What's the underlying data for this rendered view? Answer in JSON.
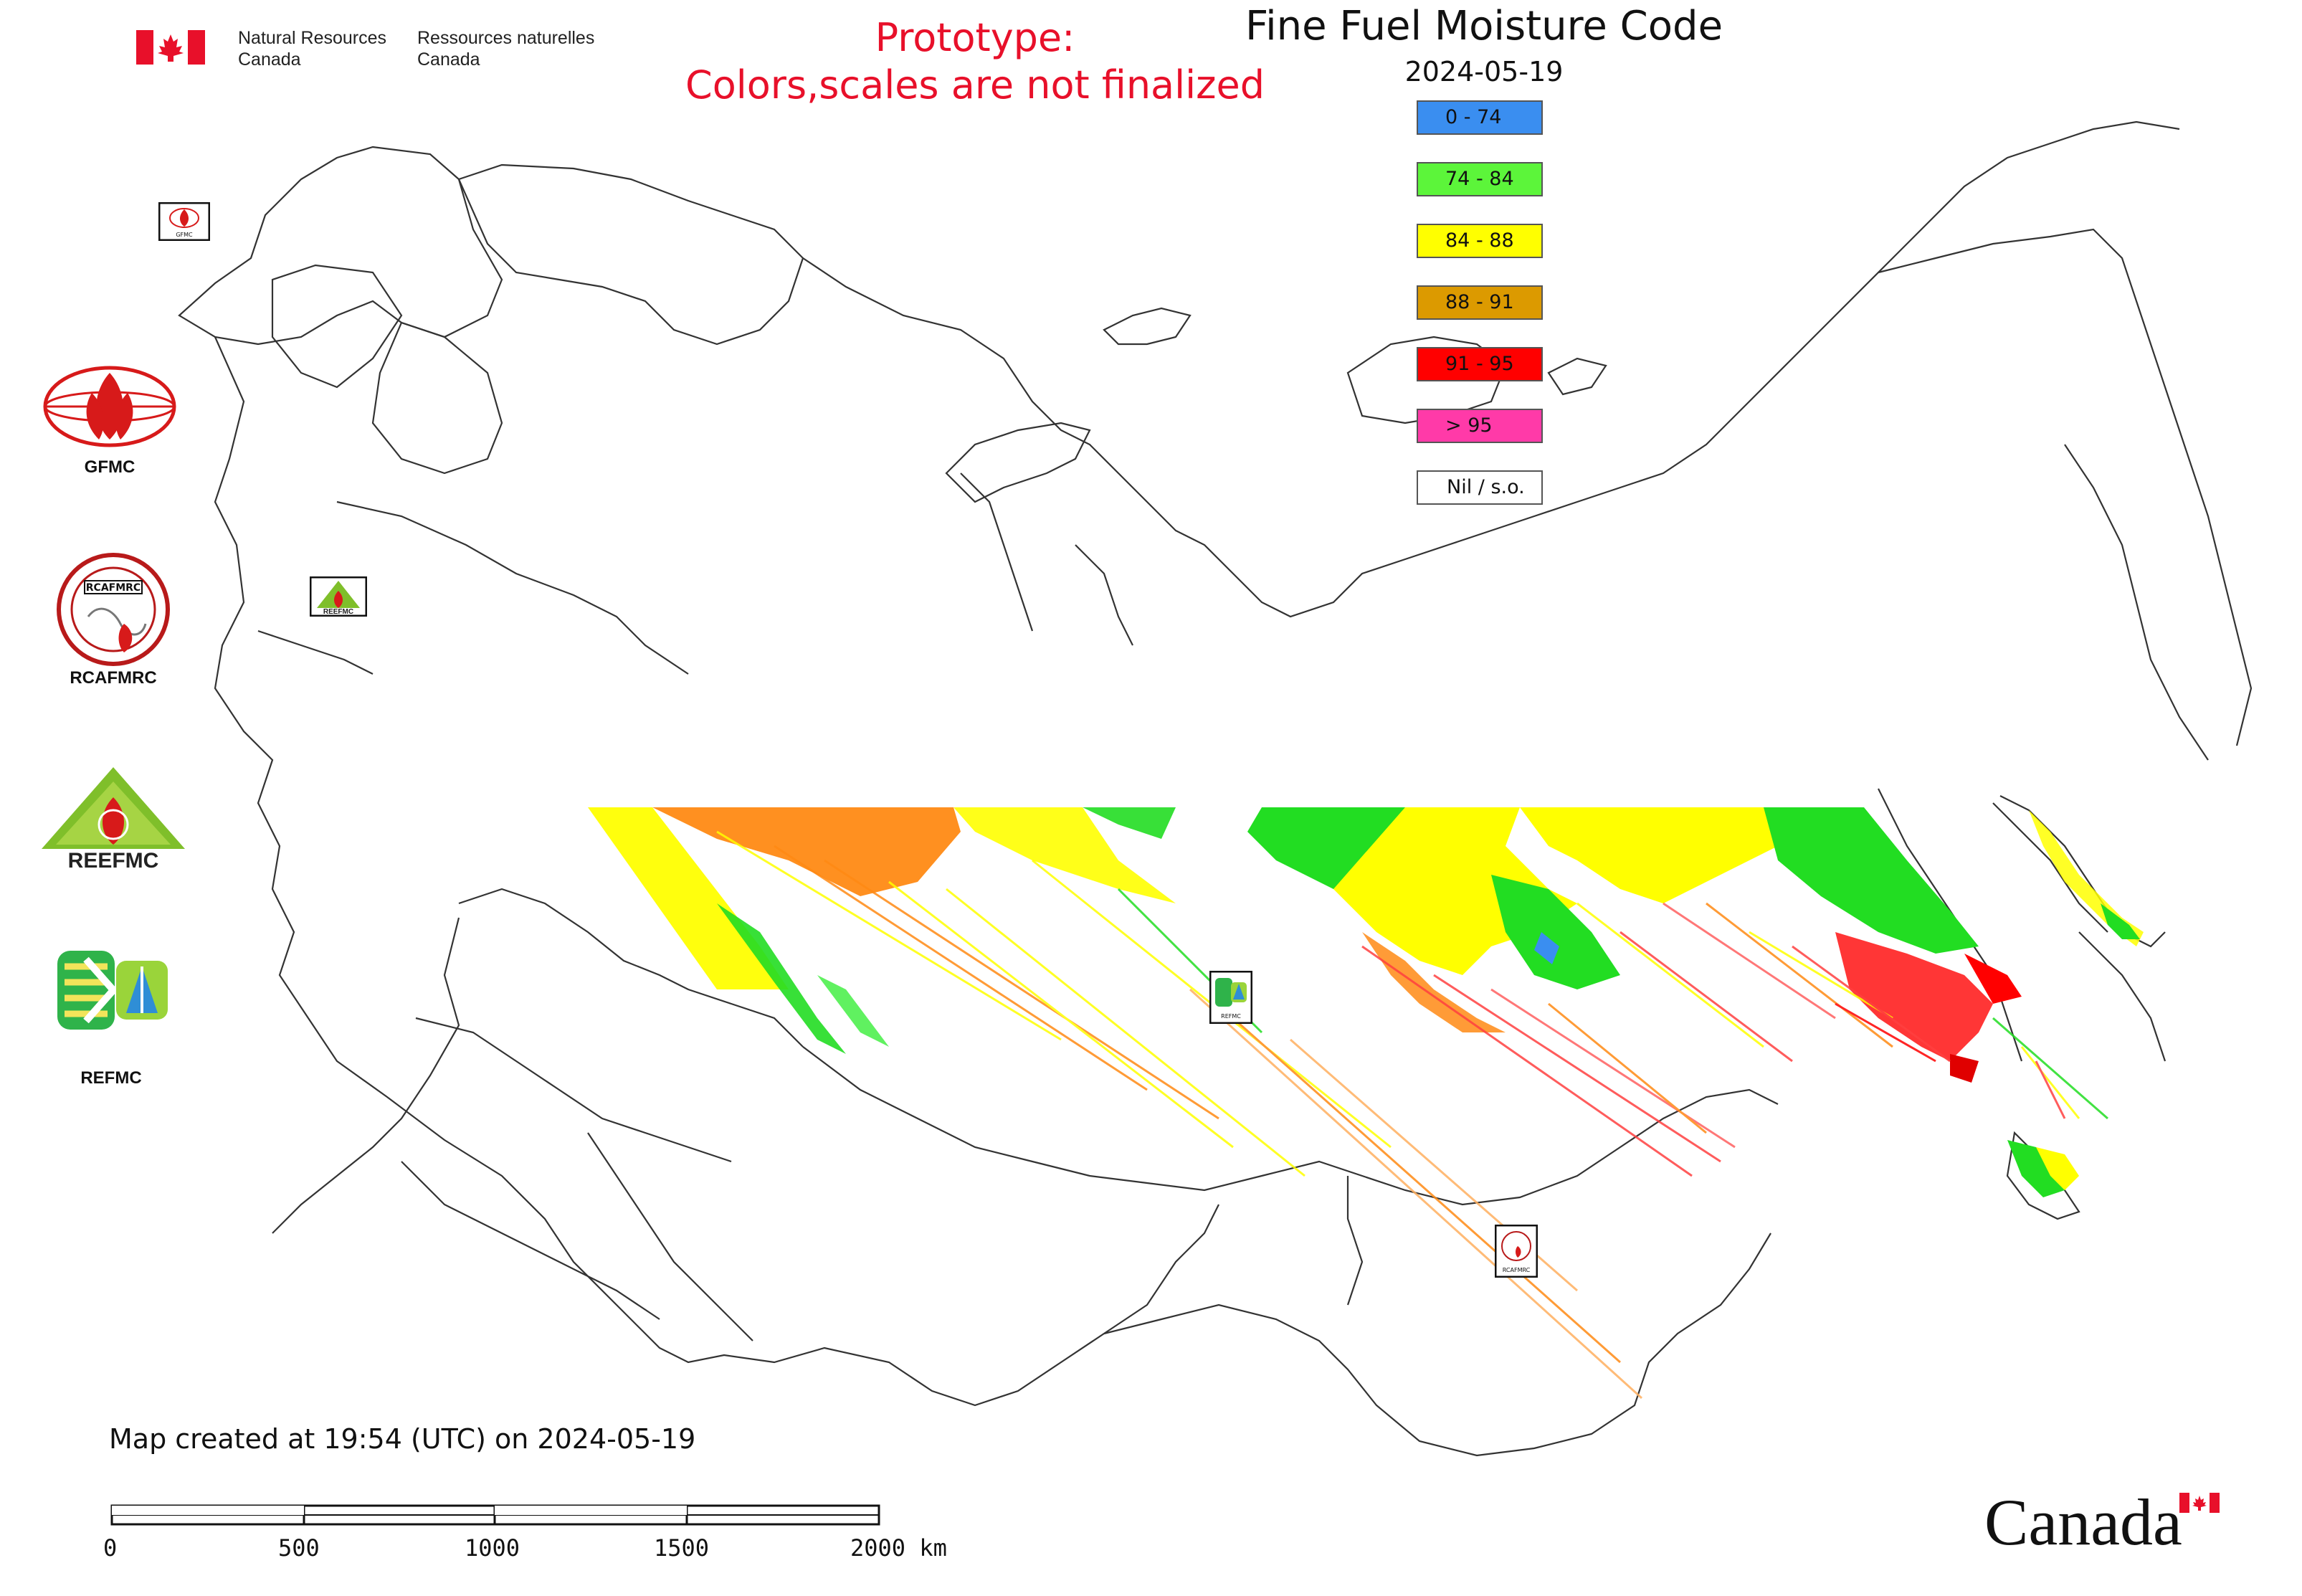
{
  "header": {
    "agency_en_line1": "Natural Resources",
    "agency_en_line2": "Canada",
    "agency_fr_line1": "Ressources naturelles",
    "agency_fr_line2": "Canada",
    "prototype_line1": "Prototype:",
    "prototype_line2": "Colors,scales are not finalized",
    "map_title": "Fine Fuel Moisture Code",
    "map_date": "2024-05-19"
  },
  "legend": {
    "items": [
      {
        "label": "0 - 74",
        "color": "#3a8ef0"
      },
      {
        "label": "74 - 84",
        "color": "#5cf53a"
      },
      {
        "label": "84 - 88",
        "color": "#ffff00"
      },
      {
        "label": "88 - 91",
        "color": "#dc9a00"
      },
      {
        "label": "91 - 95",
        "color": "#ff0000"
      },
      {
        "label": "> 95",
        "color": "#ff3aa8"
      },
      {
        "label": "Nil / s.o.",
        "color": "#ffffff"
      }
    ]
  },
  "agencies": [
    {
      "label": "GFMC",
      "icon": "gfmc-logo-icon"
    },
    {
      "label": "RCAFMRC",
      "icon": "rcafmrc-logo-icon"
    },
    {
      "label": "REEFMC",
      "icon": "reefmc-logo-icon"
    },
    {
      "label": "REFMC",
      "icon": "refmc-logo-icon"
    }
  ],
  "map_markers": [
    {
      "label": "GFMC",
      "icon": "gfmc-marker-icon"
    },
    {
      "label": "REEFMC",
      "icon": "reefmc-marker-icon"
    },
    {
      "label": "REFMC",
      "icon": "refmc-marker-icon"
    },
    {
      "label": "RCAFMRC",
      "icon": "rcafmrc-marker-icon"
    }
  ],
  "footer": {
    "created": "Map created at 19:54 (UTC) on 2024-05-19",
    "scale_ticks": [
      "0",
      "500",
      "1000",
      "1500",
      "2000 km"
    ],
    "wordmark": "Canada"
  },
  "colors": {
    "prototype_red": "#e8102a",
    "border_gray": "#333333"
  }
}
